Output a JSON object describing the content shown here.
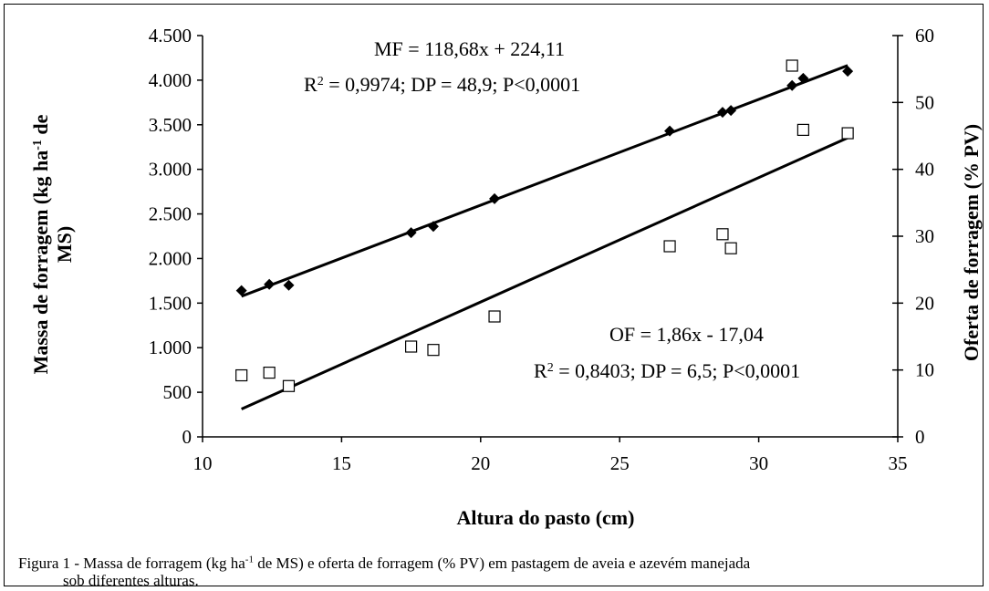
{
  "caption": {
    "line1": "Figura 1 - Massa de forragem (kg ha-1 de MS) e oferta de forragem (% PV) em pastagem de aveia e azevém manejada",
    "line2": "sob diferentes alturas."
  },
  "chart_data": {
    "type": "scatter",
    "title": "",
    "xlabel": "Altura do pasto (cm)",
    "ylabel": "Massa de forragem (kg ha-1 de MS)",
    "ylabel_right": "Oferta de forragem (% PV)",
    "xlim": [
      10,
      35
    ],
    "ylim": [
      0,
      4500
    ],
    "ylim_right": [
      0,
      60
    ],
    "x_ticks": [
      10,
      15,
      20,
      25,
      30,
      35
    ],
    "y_ticks": [
      0,
      500,
      1000,
      1500,
      2000,
      2500,
      3000,
      3500,
      4000,
      4500
    ],
    "y_tick_labels": [
      "0",
      "500",
      "1.000",
      "1.500",
      "2.000",
      "2.500",
      "3.000",
      "3.500",
      "4.000",
      "4.500"
    ],
    "y_right_ticks": [
      0,
      10,
      20,
      30,
      40,
      50,
      60
    ],
    "grid": false,
    "legend": "none",
    "series": [
      {
        "axis": "left",
        "marker": "filled-diamond",
        "x": [
          11.4,
          12.4,
          13.1,
          17.5,
          18.3,
          20.5,
          26.8,
          28.7,
          29.0,
          31.2,
          31.6,
          33.2
        ],
        "y": [
          1640,
          1710,
          1700,
          2290,
          2360,
          2670,
          3430,
          3640,
          3660,
          3940,
          4020,
          4100
        ]
      },
      {
        "axis": "right",
        "marker": "hollow-square",
        "x": [
          11.4,
          12.4,
          13.1,
          17.5,
          18.3,
          20.5,
          26.8,
          28.7,
          29.0,
          31.2,
          31.6,
          33.2
        ],
        "y": [
          9.2,
          9.6,
          7.6,
          13.5,
          13.0,
          18.0,
          28.5,
          30.3,
          28.2,
          55.5,
          45.9,
          45.4
        ]
      }
    ],
    "trendlines": [
      {
        "axis": "left",
        "slope": 118.68,
        "intercept": 224.11,
        "x_range": [
          11.4,
          33.2
        ]
      },
      {
        "axis": "right",
        "slope": 1.86,
        "intercept": -17.04,
        "x_range": [
          11.4,
          33.2
        ]
      }
    ],
    "annotations": {
      "mf_equation": "MF = 118,68x + 224,11",
      "mf_stats": "R2 = 0,9974; DP = 48,9; P<0,0001",
      "of_equation": "OF = 1,86x - 17,04",
      "of_stats": "R2 = 0,8403; DP = 6,5; P<0,0001"
    }
  }
}
